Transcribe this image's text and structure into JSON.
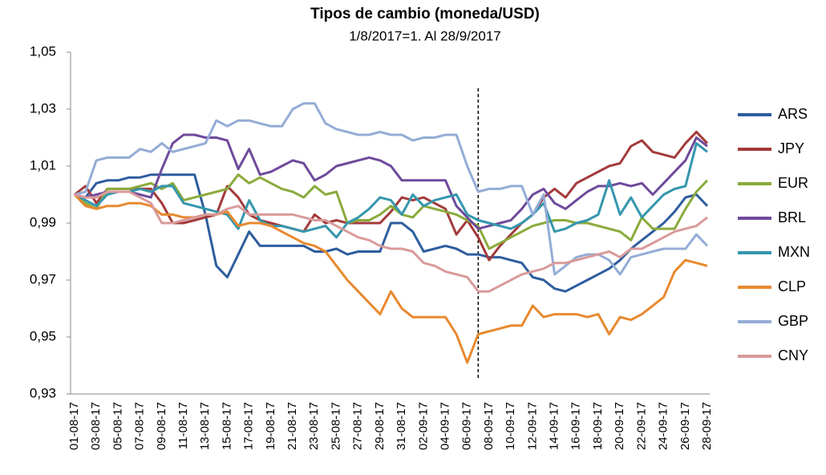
{
  "chart_data": {
    "type": "line",
    "title": "Tipos de cambio (moneda/USD)",
    "subtitle": "1/8/2017=1.  Al 28/9/2017",
    "categories": [
      "01-08-17",
      null,
      "03-08-17",
      null,
      "05-08-17",
      null,
      "07-08-17",
      null,
      "09-08-17",
      null,
      "11-08-17",
      null,
      "13-08-17",
      null,
      "15-08-17",
      null,
      "17-08-17",
      null,
      "19-08-17",
      null,
      "21-08-17",
      null,
      "23-08-17",
      null,
      "25-08-17",
      null,
      "27-08-17",
      null,
      "29-08-17",
      null,
      "31-08-17",
      null,
      "02-09-17",
      null,
      "04-09-17",
      null,
      "06-09-17",
      null,
      "08-09-17",
      null,
      "10-09-17",
      null,
      "12-09-17",
      null,
      "14-09-17",
      null,
      "16-09-17",
      null,
      "18-09-17",
      null,
      "20-09-17",
      null,
      "22-09-17",
      null,
      "24-09-17",
      null,
      "26-09-17",
      null,
      "28-09-17"
    ],
    "series": [
      {
        "name": "ARS",
        "color": "#2e5d9e",
        "values": [
          1.0,
          0.999,
          1.004,
          1.005,
          1.005,
          1.006,
          1.006,
          1.007,
          1.007,
          1.007,
          1.007,
          1.007,
          0.993,
          0.975,
          0.971,
          0.979,
          0.987,
          0.982,
          0.982,
          0.982,
          0.982,
          0.982,
          0.98,
          0.98,
          0.981,
          0.979,
          0.98,
          0.98,
          0.98,
          0.99,
          0.99,
          0.987,
          0.98,
          0.981,
          0.982,
          0.981,
          0.979,
          0.979,
          0.978,
          0.978,
          0.977,
          0.976,
          0.971,
          0.97,
          0.967,
          0.966,
          0.968,
          0.97,
          0.972,
          0.974,
          0.977,
          0.981,
          0.984,
          0.987,
          0.99,
          0.994,
          0.999,
          1.0,
          0.996
        ]
      },
      {
        "name": "JPY",
        "color": "#a33a3a",
        "values": [
          1.0,
          1.003,
          0.997,
          1.002,
          1.002,
          1.002,
          1.002,
          1.002,
          0.997,
          0.99,
          0.99,
          0.991,
          0.992,
          0.993,
          1.003,
          0.999,
          0.993,
          0.991,
          0.99,
          0.989,
          0.988,
          0.987,
          0.993,
          0.99,
          0.991,
          0.99,
          0.99,
          0.99,
          0.99,
          0.994,
          0.999,
          0.998,
          0.999,
          0.997,
          0.995,
          0.986,
          0.991,
          0.985,
          0.977,
          0.982,
          0.986,
          0.99,
          0.993,
          0.999,
          1.002,
          0.999,
          1.004,
          1.006,
          1.008,
          1.01,
          1.011,
          1.017,
          1.019,
          1.015,
          1.014,
          1.013,
          1.018,
          1.022,
          1.018
        ]
      },
      {
        "name": "EUR",
        "color": "#8aab3c",
        "values": [
          1.0,
          0.997,
          0.995,
          1.002,
          1.002,
          1.002,
          1.003,
          1.004,
          1.002,
          1.004,
          0.998,
          0.999,
          1.0,
          1.001,
          1.002,
          1.007,
          1.004,
          1.006,
          1.004,
          1.002,
          1.001,
          0.999,
          1.003,
          1.0,
          1.001,
          0.99,
          0.991,
          0.991,
          0.993,
          0.996,
          0.993,
          0.992,
          0.996,
          0.995,
          0.994,
          0.993,
          0.991,
          0.989,
          0.981,
          0.983,
          0.985,
          0.987,
          0.989,
          0.99,
          0.991,
          0.991,
          0.99,
          0.99,
          0.989,
          0.988,
          0.987,
          0.984,
          0.992,
          0.988,
          0.988,
          0.988,
          0.995,
          1.001,
          1.005
        ]
      },
      {
        "name": "BRL",
        "color": "#6e4a9b",
        "values": [
          1.0,
          0.999,
          1.0,
          1.001,
          1.001,
          1.001,
          1.0,
          0.999,
          1.009,
          1.018,
          1.021,
          1.021,
          1.02,
          1.02,
          1.019,
          1.009,
          1.016,
          1.007,
          1.008,
          1.01,
          1.012,
          1.011,
          1.005,
          1.007,
          1.01,
          1.011,
          1.012,
          1.013,
          1.012,
          1.01,
          1.005,
          1.005,
          1.005,
          1.005,
          1.005,
          0.996,
          0.992,
          0.988,
          0.989,
          0.99,
          0.991,
          0.995,
          1.0,
          1.002,
          0.997,
          0.995,
          0.998,
          1.001,
          1.003,
          1.003,
          1.004,
          1.003,
          1.004,
          1.0,
          1.004,
          1.008,
          1.012,
          1.02,
          1.017
        ]
      },
      {
        "name": "MXN",
        "color": "#3596ad",
        "values": [
          1.0,
          0.998,
          0.996,
          1.0,
          1.001,
          1.001,
          1.002,
          1.001,
          1.003,
          1.003,
          0.997,
          0.996,
          0.995,
          0.994,
          0.993,
          0.988,
          0.998,
          0.991,
          0.989,
          0.989,
          0.988,
          0.987,
          0.988,
          0.989,
          0.985,
          0.99,
          0.992,
          0.995,
          0.999,
          0.998,
          0.993,
          1.0,
          0.996,
          0.998,
          0.999,
          1.0,
          0.993,
          0.991,
          0.99,
          0.989,
          0.988,
          0.99,
          0.993,
          0.997,
          0.987,
          0.988,
          0.99,
          0.991,
          0.993,
          1.005,
          0.993,
          0.999,
          0.992,
          0.996,
          1.0,
          1.002,
          1.003,
          1.018,
          1.015
        ]
      },
      {
        "name": "CLP",
        "color": "#e8892f",
        "values": [
          1.0,
          0.996,
          0.995,
          0.996,
          0.996,
          0.997,
          0.997,
          0.996,
          0.993,
          0.993,
          0.992,
          0.992,
          0.993,
          0.993,
          0.994,
          0.989,
          0.99,
          0.99,
          0.989,
          0.987,
          0.985,
          0.983,
          0.982,
          0.98,
          0.975,
          0.97,
          0.966,
          0.962,
          0.958,
          0.966,
          0.96,
          0.957,
          0.957,
          0.957,
          0.957,
          0.951,
          0.941,
          0.951,
          0.952,
          0.953,
          0.954,
          0.954,
          0.961,
          0.957,
          0.958,
          0.958,
          0.958,
          0.957,
          0.958,
          0.951,
          0.957,
          0.956,
          0.958,
          0.961,
          0.964,
          0.973,
          0.977,
          0.976,
          0.975
        ]
      },
      {
        "name": "GBP",
        "color": "#94acd6",
        "values": [
          1.0,
          1.001,
          1.012,
          1.013,
          1.013,
          1.013,
          1.016,
          1.015,
          1.018,
          1.015,
          1.016,
          1.017,
          1.018,
          1.026,
          1.024,
          1.026,
          1.026,
          1.025,
          1.024,
          1.024,
          1.03,
          1.032,
          1.032,
          1.025,
          1.023,
          1.022,
          1.021,
          1.021,
          1.022,
          1.021,
          1.021,
          1.019,
          1.02,
          1.02,
          1.021,
          1.021,
          1.01,
          1.001,
          1.002,
          1.002,
          1.003,
          1.003,
          0.993,
          1.0,
          0.972,
          0.975,
          0.978,
          0.979,
          0.979,
          0.977,
          0.972,
          0.978,
          0.979,
          0.98,
          0.981,
          0.981,
          0.981,
          0.986,
          0.982
        ]
      },
      {
        "name": "CNY",
        "color": "#d99a9a",
        "values": [
          1.0,
          0.999,
          0.999,
          1.001,
          1.001,
          1.001,
          0.999,
          0.997,
          0.99,
          0.99,
          0.991,
          0.992,
          0.993,
          0.993,
          0.995,
          0.996,
          0.993,
          0.993,
          0.993,
          0.993,
          0.993,
          0.992,
          0.991,
          0.991,
          0.989,
          0.987,
          0.985,
          0.984,
          0.982,
          0.981,
          0.981,
          0.98,
          0.976,
          0.975,
          0.973,
          0.972,
          0.971,
          0.966,
          0.966,
          0.968,
          0.97,
          0.972,
          0.973,
          0.974,
          0.976,
          0.976,
          0.977,
          0.978,
          0.979,
          0.98,
          0.978,
          0.981,
          0.981,
          0.983,
          0.985,
          0.987,
          0.988,
          0.989,
          0.992
        ]
      }
    ],
    "ylim": [
      0.93,
      1.05
    ],
    "yticks": [
      {
        "value": 0.93,
        "label": "0,93"
      },
      {
        "value": 0.95,
        "label": "0,95"
      },
      {
        "value": 0.97,
        "label": "0,97"
      },
      {
        "value": 0.99,
        "label": "0,99"
      },
      {
        "value": 1.01,
        "label": "1,01"
      },
      {
        "value": 1.03,
        "label": "1,03"
      },
      {
        "value": 1.05,
        "label": "1,05"
      }
    ],
    "grid": false,
    "legend": "right",
    "vline": 37
  }
}
